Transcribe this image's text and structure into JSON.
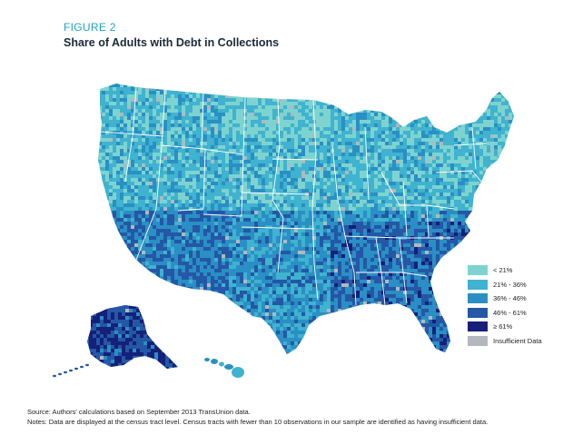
{
  "figure": {
    "label": "FIGURE 2",
    "title": "Share of Adults with Debt in Collections"
  },
  "legend": [
    {
      "label": "< 21%",
      "color": "#7fd3cf"
    },
    {
      "label": "21% - 36%",
      "color": "#3fb3cf"
    },
    {
      "label": "36% - 46%",
      "color": "#2a8fc4"
    },
    {
      "label": "46% - 61%",
      "color": "#2457a5"
    },
    {
      "label": "≥ 61%",
      "color": "#14207a"
    },
    {
      "label": "Insufficient Data",
      "color": "#b4b8bc"
    }
  ],
  "footer": {
    "source": "Source: Authors' calculations based on September 2013 TransUnion data.",
    "notes": "Notes: Data are displayed at the census tract level. Census tracts with fewer than 10 observations in our sample are identified as having insufficient data."
  }
}
